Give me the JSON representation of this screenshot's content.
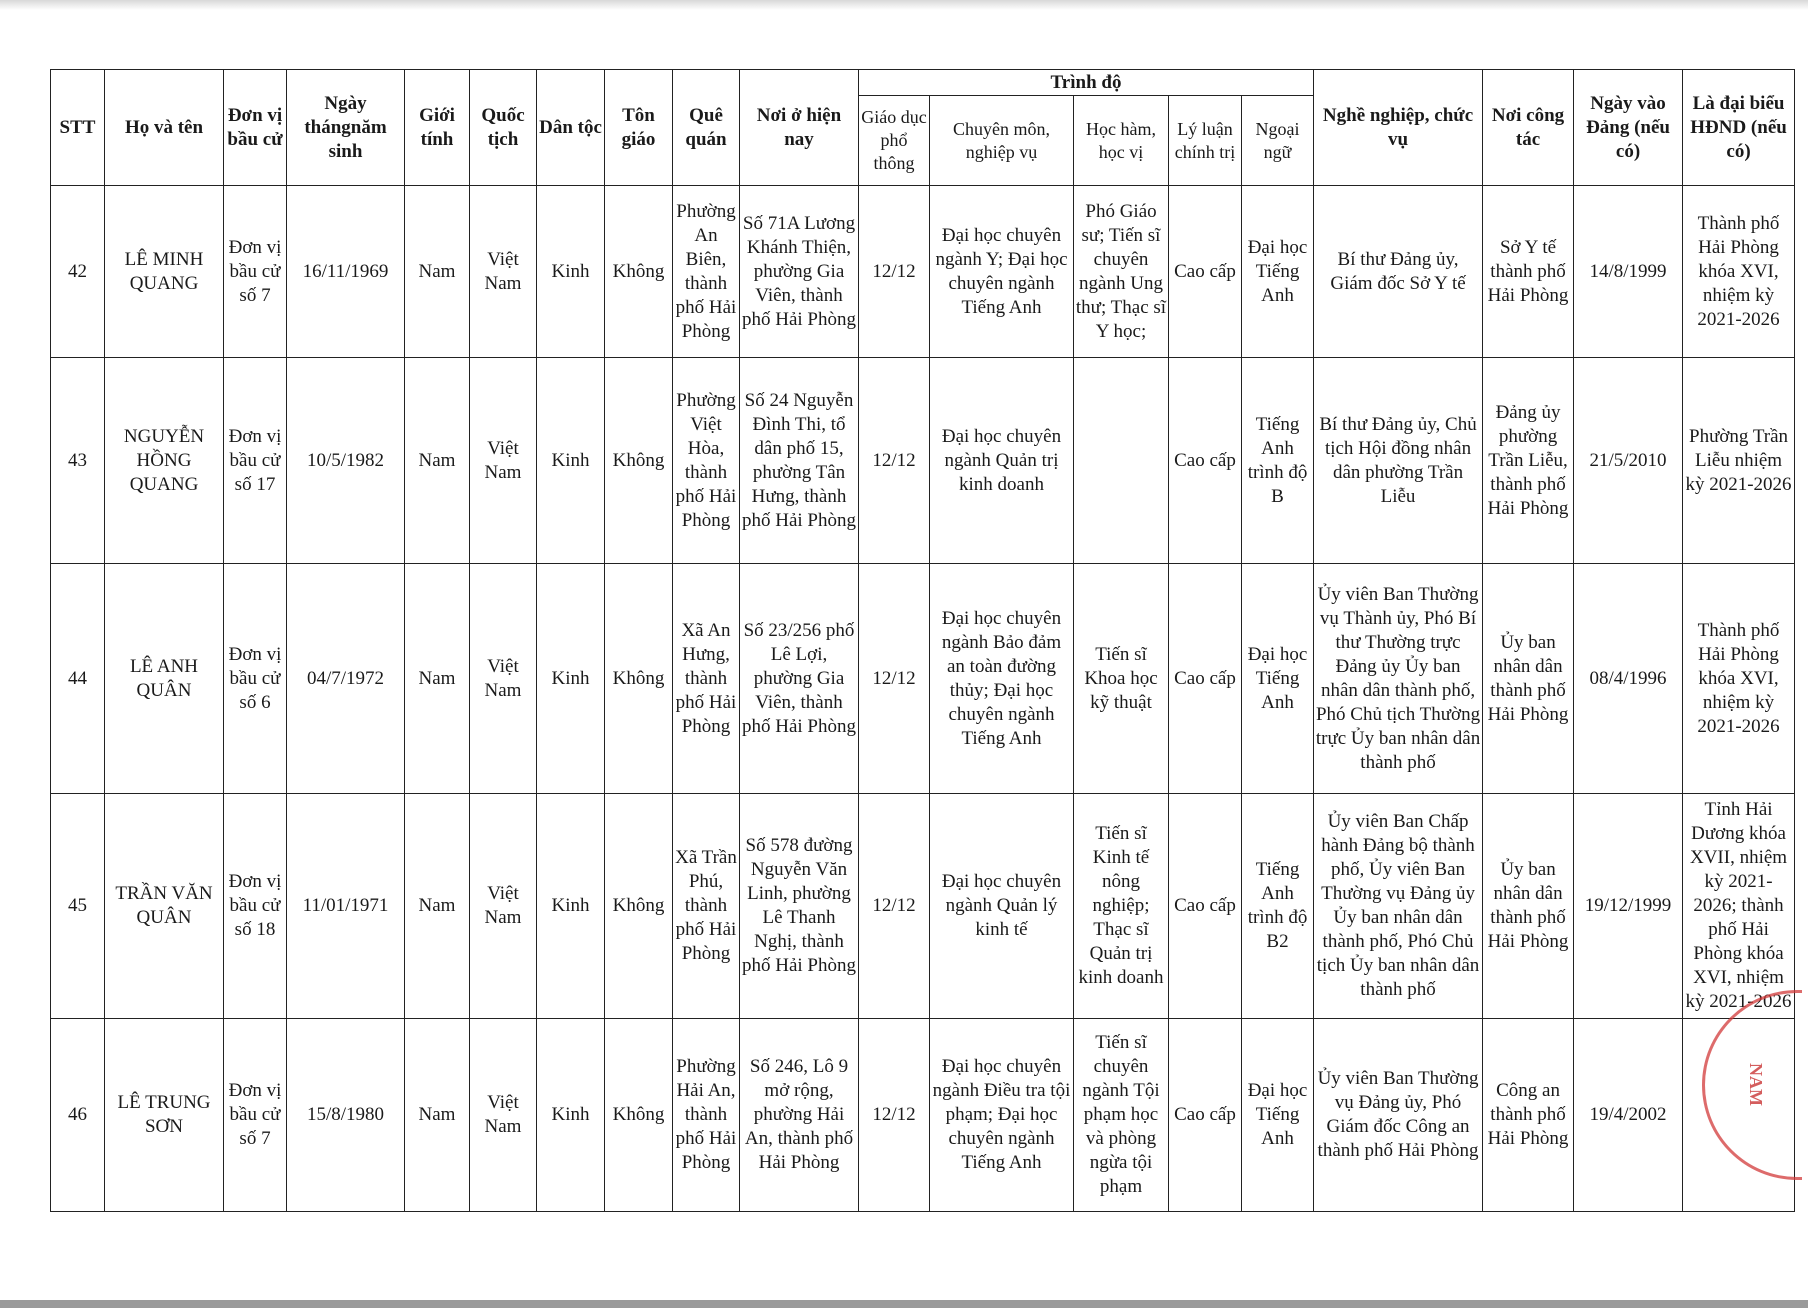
{
  "header": {
    "group_label": "Trình độ",
    "columns": [
      "STT",
      "Họ và tên",
      "Đơn vị bầu cử",
      "Ngày thángnăm sinh",
      "Giới tính",
      "Quốc tịch",
      "Dân tộc",
      "Tôn giáo",
      "Quê quán",
      "Nơi ở hiện nay"
    ],
    "sub_columns": [
      "Giáo dục phổ thông",
      "Chuyên môn, nghiệp vụ",
      "Học hàm, học vị",
      "Lý luận chính trị",
      "Ngoại ngữ"
    ],
    "tail_columns": [
      "Nghề nghiệp, chức vụ",
      "Nơi công tác",
      "Ngày vào Đảng (nếu có)",
      "Là đại biểu HĐND (nếu có)"
    ]
  },
  "rows": [
    [
      "42",
      "LÊ MINH QUANG",
      "Đơn vị bầu cử số 7",
      "16/11/1969",
      "Nam",
      "Việt Nam",
      "Kinh",
      "Không",
      "Phường An Biên, thành phố Hải Phòng",
      "Số 71A Lương Khánh Thiện, phường Gia Viên, thành phố Hải Phòng",
      "12/12",
      "Đại học chuyên ngành Y; Đại học chuyên ngành Tiếng Anh",
      "Phó Giáo sư; Tiến sĩ chuyên ngành Ung thư; Thạc sĩ Y học;",
      "Cao cấp",
      "Đại học Tiếng Anh",
      "Bí thư Đảng ủy, Giám đốc Sở Y tế",
      "Sở Y tế thành phố Hải Phòng",
      "14/8/1999",
      "Thành phố Hải Phòng khóa XVI, nhiệm kỳ 2021-2026"
    ],
    [
      "43",
      "NGUYỄN HỒNG QUANG",
      "Đơn vị bầu cử số 17",
      "10/5/1982",
      "Nam",
      "Việt Nam",
      "Kinh",
      "Không",
      "Phường Việt Hòa, thành phố Hải Phòng",
      "Số 24 Nguyễn Đình Thi, tổ dân phố 15, phường Tân Hưng, thành phố Hải Phòng",
      "12/12",
      "Đại học chuyên ngành Quản trị kinh doanh",
      "",
      "Cao cấp",
      "Tiếng Anh trình độ B",
      "Bí thư Đảng ủy, Chủ tịch Hội đồng nhân dân phường Trần Liễu",
      "Đảng ủy phường Trần Liễu, thành phố Hải Phòng",
      "21/5/2010",
      "Phường Trần Liễu nhiệm kỳ 2021-2026"
    ],
    [
      "44",
      "LÊ ANH QUÂN",
      "Đơn vị bầu cử số 6",
      "04/7/1972",
      "Nam",
      "Việt Nam",
      "Kinh",
      "Không",
      "Xã An Hưng, thành phố Hải Phòng",
      "Số 23/256 phố Lê Lợi, phường Gia Viên, thành phố Hải Phòng",
      "12/12",
      "Đại học chuyên ngành Bảo đảm an toàn đường thủy; Đại học chuyên ngành Tiếng Anh",
      "Tiến sĩ Khoa học kỹ thuật",
      "Cao cấp",
      "Đại học Tiếng Anh",
      "Ủy viên Ban Thường vụ Thành ủy, Phó Bí thư Thường trực Đảng ủy Ủy ban nhân dân thành phố, Phó Chủ tịch Thường trực Ủy ban nhân dân thành phố",
      "Ủy ban nhân dân thành phố Hải Phòng",
      "08/4/1996",
      "Thành phố Hải Phòng khóa XVI, nhiệm kỳ 2021-2026"
    ],
    [
      "45",
      "TRẦN VĂN QUÂN",
      "Đơn vị bầu cử số 18",
      "11/01/1971",
      "Nam",
      "Việt Nam",
      "Kinh",
      "Không",
      "Xã Trần Phú, thành phố Hải Phòng",
      "Số 578 đường Nguyễn Văn Linh, phường Lê Thanh Nghị, thành phố Hải Phòng",
      "12/12",
      "Đại học chuyên ngành Quản lý kinh tế",
      "Tiến sĩ Kinh tế nông nghiệp; Thạc sĩ Quản trị kinh doanh",
      "Cao cấp",
      "Tiếng Anh trình độ B2",
      "Ủy viên Ban Chấp hành Đảng bộ thành phố, Ủy viên Ban Thường vụ Đảng ủy Ủy ban nhân dân thành phố, Phó Chủ tịch Ủy ban nhân dân thành phố",
      "Ủy ban nhân dân thành phố Hải Phòng",
      "19/12/1999",
      "Tỉnh Hải Dương khóa XVII, nhiệm kỳ 2021-2026; thành phố Hải Phòng khóa XVI, nhiệm kỳ 2021-2026"
    ],
    [
      "46",
      "LÊ TRUNG SƠN",
      "Đơn vị bầu cử số 7",
      "15/8/1980",
      "Nam",
      "Việt Nam",
      "Kinh",
      "Không",
      "Phường Hải An, thành phố Hải Phòng",
      "Số 246, Lô 9 mở rộng, phường Hải An, thành phố Hải Phòng",
      "12/12",
      "Đại học chuyên ngành Điều tra tội phạm; Đại học chuyên ngành Tiếng Anh",
      "Tiến sĩ chuyên ngành Tội phạm học và phòng ngừa tội phạm",
      "Cao cấp",
      "Đại học Tiếng Anh",
      "Ủy viên Ban Thường vụ Đảng ủy, Phó Giám đốc Công an thành phố Hải Phòng",
      "Công an thành phố Hải Phòng",
      "19/4/2002",
      ""
    ]
  ],
  "stamp": {
    "text": "NAM",
    "color": "#c62828"
  }
}
